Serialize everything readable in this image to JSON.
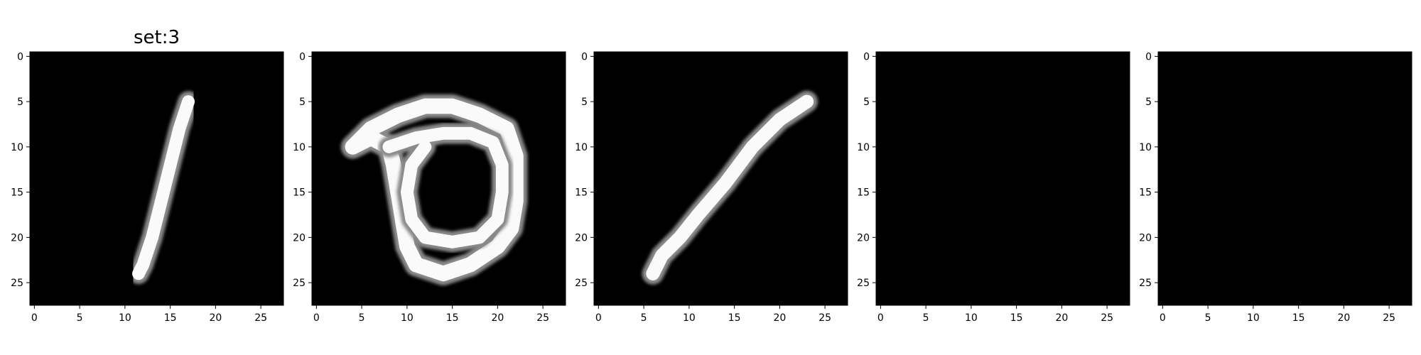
{
  "figure": {
    "background": "#ffffff"
  },
  "chart_data": [
    {
      "type": "heatmap",
      "title": "set:3",
      "colormap": "gray",
      "x_ticks": [
        "0",
        "5",
        "10",
        "15",
        "20",
        "25"
      ],
      "y_ticks": [
        "0",
        "5",
        "10",
        "15",
        "20",
        "25"
      ],
      "xlim": [
        -0.5,
        27.5
      ],
      "ylim": [
        27.5,
        -0.5
      ],
      "grid": false,
      "strokes": [
        {
          "points": [
            [
              17,
              5
            ],
            [
              16,
              8
            ],
            [
              15,
              12
            ],
            [
              14,
              16
            ],
            [
              13,
              20
            ],
            [
              12,
              23
            ],
            [
              11.5,
              24
            ]
          ],
          "width": 1.4
        }
      ]
    },
    {
      "type": "heatmap",
      "title": "",
      "colormap": "gray",
      "x_ticks": [
        "0",
        "5",
        "10",
        "15",
        "20",
        "25"
      ],
      "y_ticks": [
        "0",
        "5",
        "10",
        "15",
        "20",
        "25"
      ],
      "xlim": [
        -0.5,
        27.5
      ],
      "ylim": [
        27.5,
        -0.5
      ],
      "grid": false,
      "strokes": [
        {
          "points": [
            [
              4,
              10
            ],
            [
              6,
              8
            ],
            [
              9,
              6.5
            ],
            [
              12,
              5.5
            ],
            [
              15,
              5.5
            ],
            [
              18,
              6.5
            ],
            [
              21,
              8
            ],
            [
              22,
              11
            ],
            [
              22,
              16
            ],
            [
              21.5,
              19
            ],
            [
              20,
              21
            ],
            [
              17,
              23
            ],
            [
              14,
              24
            ],
            [
              11,
              23
            ],
            [
              10,
              21
            ],
            [
              9.5,
              18
            ],
            [
              9,
              15
            ],
            [
              8.5,
              12
            ],
            [
              8,
              10
            ],
            [
              6,
              9
            ],
            [
              4,
              10
            ]
          ],
          "width": 1.7
        },
        {
          "points": [
            [
              8,
              10
            ],
            [
              11,
              9
            ],
            [
              14,
              8.5
            ],
            [
              17,
              8.5
            ],
            [
              19.5,
              9.5
            ],
            [
              20.5,
              12
            ],
            [
              20.5,
              15
            ],
            [
              20,
              18
            ],
            [
              18,
              20
            ],
            [
              15,
              20.5
            ],
            [
              12,
              20
            ],
            [
              10.5,
              18
            ],
            [
              10,
              15
            ],
            [
              10.5,
              12
            ],
            [
              12,
              10
            ]
          ],
          "width": 1.4
        }
      ]
    },
    {
      "type": "heatmap",
      "title": "",
      "colormap": "gray",
      "x_ticks": [
        "0",
        "5",
        "10",
        "15",
        "20",
        "25"
      ],
      "y_ticks": [
        "0",
        "5",
        "10",
        "15",
        "20",
        "25"
      ],
      "xlim": [
        -0.5,
        27.5
      ],
      "ylim": [
        27.5,
        -0.5
      ],
      "grid": false,
      "strokes": [
        {
          "points": [
            [
              23,
              5
            ],
            [
              20,
              7
            ],
            [
              17,
              10
            ],
            [
              14,
              14
            ],
            [
              11,
              17.5
            ],
            [
              9,
              20
            ],
            [
              7,
              22
            ],
            [
              6,
              24
            ]
          ],
          "width": 1.5
        }
      ]
    },
    {
      "type": "heatmap",
      "title": "",
      "colormap": "gray",
      "x_ticks": [
        "0",
        "5",
        "10",
        "15",
        "20",
        "25"
      ],
      "y_ticks": [
        "0",
        "5",
        "10",
        "15",
        "20",
        "25"
      ],
      "xlim": [
        -0.5,
        27.5
      ],
      "ylim": [
        27.5,
        -0.5
      ],
      "grid": false,
      "strokes": []
    },
    {
      "type": "heatmap",
      "title": "",
      "colormap": "gray",
      "x_ticks": [
        "0",
        "5",
        "10",
        "15",
        "20",
        "25"
      ],
      "y_ticks": [
        "0",
        "5",
        "10",
        "15",
        "20",
        "25"
      ],
      "xlim": [
        -0.5,
        27.5
      ],
      "ylim": [
        27.5,
        -0.5
      ],
      "grid": false,
      "strokes": []
    }
  ]
}
